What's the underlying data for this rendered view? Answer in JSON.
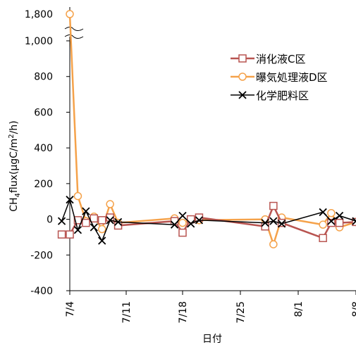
{
  "chart_data": {
    "type": "line",
    "title": "",
    "xlabel": "日付",
    "ylabel_main": "CH",
    "ylabel_sub": "4",
    "ylabel_rest": "flux(μgC/m",
    "ylabel_sup": "2",
    "ylabel_end": "/h)",
    "y_axis_break": {
      "from": 200,
      "to": 1000
    },
    "ylim": [
      -400,
      1800
    ],
    "xlim": [
      "7/3",
      "8/8"
    ],
    "x_ticks": [
      "7/4",
      "7/11",
      "7/18",
      "7/25",
      "8/1",
      "8/8"
    ],
    "y_ticks": [
      "1,800",
      "1,000",
      "800",
      "600",
      "400",
      "200",
      "0",
      "-200",
      "-400"
    ],
    "grid": false,
    "legend_position": "top-right",
    "series": [
      {
        "name": "消化液C区",
        "color": "#b85450",
        "marker": "square",
        "x": [
          "7/3",
          "7/4",
          "7/5",
          "7/6",
          "7/7",
          "7/8",
          "7/9",
          "7/10",
          "7/17",
          "7/18",
          "7/19",
          "7/20",
          "7/28",
          "7/29",
          "7/30",
          "8/4",
          "8/5",
          "8/6",
          "8/8"
        ],
        "y": [
          -85,
          -85,
          -5,
          -20,
          5,
          -5,
          10,
          -35,
          -10,
          -75,
          0,
          10,
          -40,
          75,
          -20,
          -105,
          -20,
          -20,
          -15
        ]
      },
      {
        "name": "曝気処理液D区",
        "color": "#f5a24a",
        "marker": "circle",
        "x": [
          "7/4",
          "7/5",
          "7/6",
          "7/7",
          "7/8",
          "7/9",
          "7/10",
          "7/17",
          "7/18",
          "7/19",
          "7/20",
          "7/28",
          "7/29",
          "7/30",
          "8/4",
          "8/5",
          "8/6",
          "8/8"
        ],
        "y": [
          1800,
          130,
          -10,
          15,
          -55,
          85,
          -20,
          5,
          -20,
          0,
          -5,
          0,
          -140,
          10,
          -30,
          35,
          -45,
          -15
        ]
      },
      {
        "name": "化学肥料区",
        "color": "#000000",
        "marker": "x",
        "x": [
          "7/3",
          "7/4",
          "7/5",
          "7/6",
          "7/7",
          "7/8",
          "7/9",
          "7/10",
          "7/17",
          "7/18",
          "7/19",
          "7/20",
          "7/28",
          "7/29",
          "7/30",
          "8/4",
          "8/5",
          "8/6",
          "8/8"
        ],
        "y": [
          -10,
          110,
          -60,
          45,
          -45,
          -120,
          -5,
          -15,
          -30,
          20,
          -25,
          -5,
          -20,
          -10,
          -25,
          40,
          -10,
          20,
          -10
        ]
      }
    ]
  }
}
